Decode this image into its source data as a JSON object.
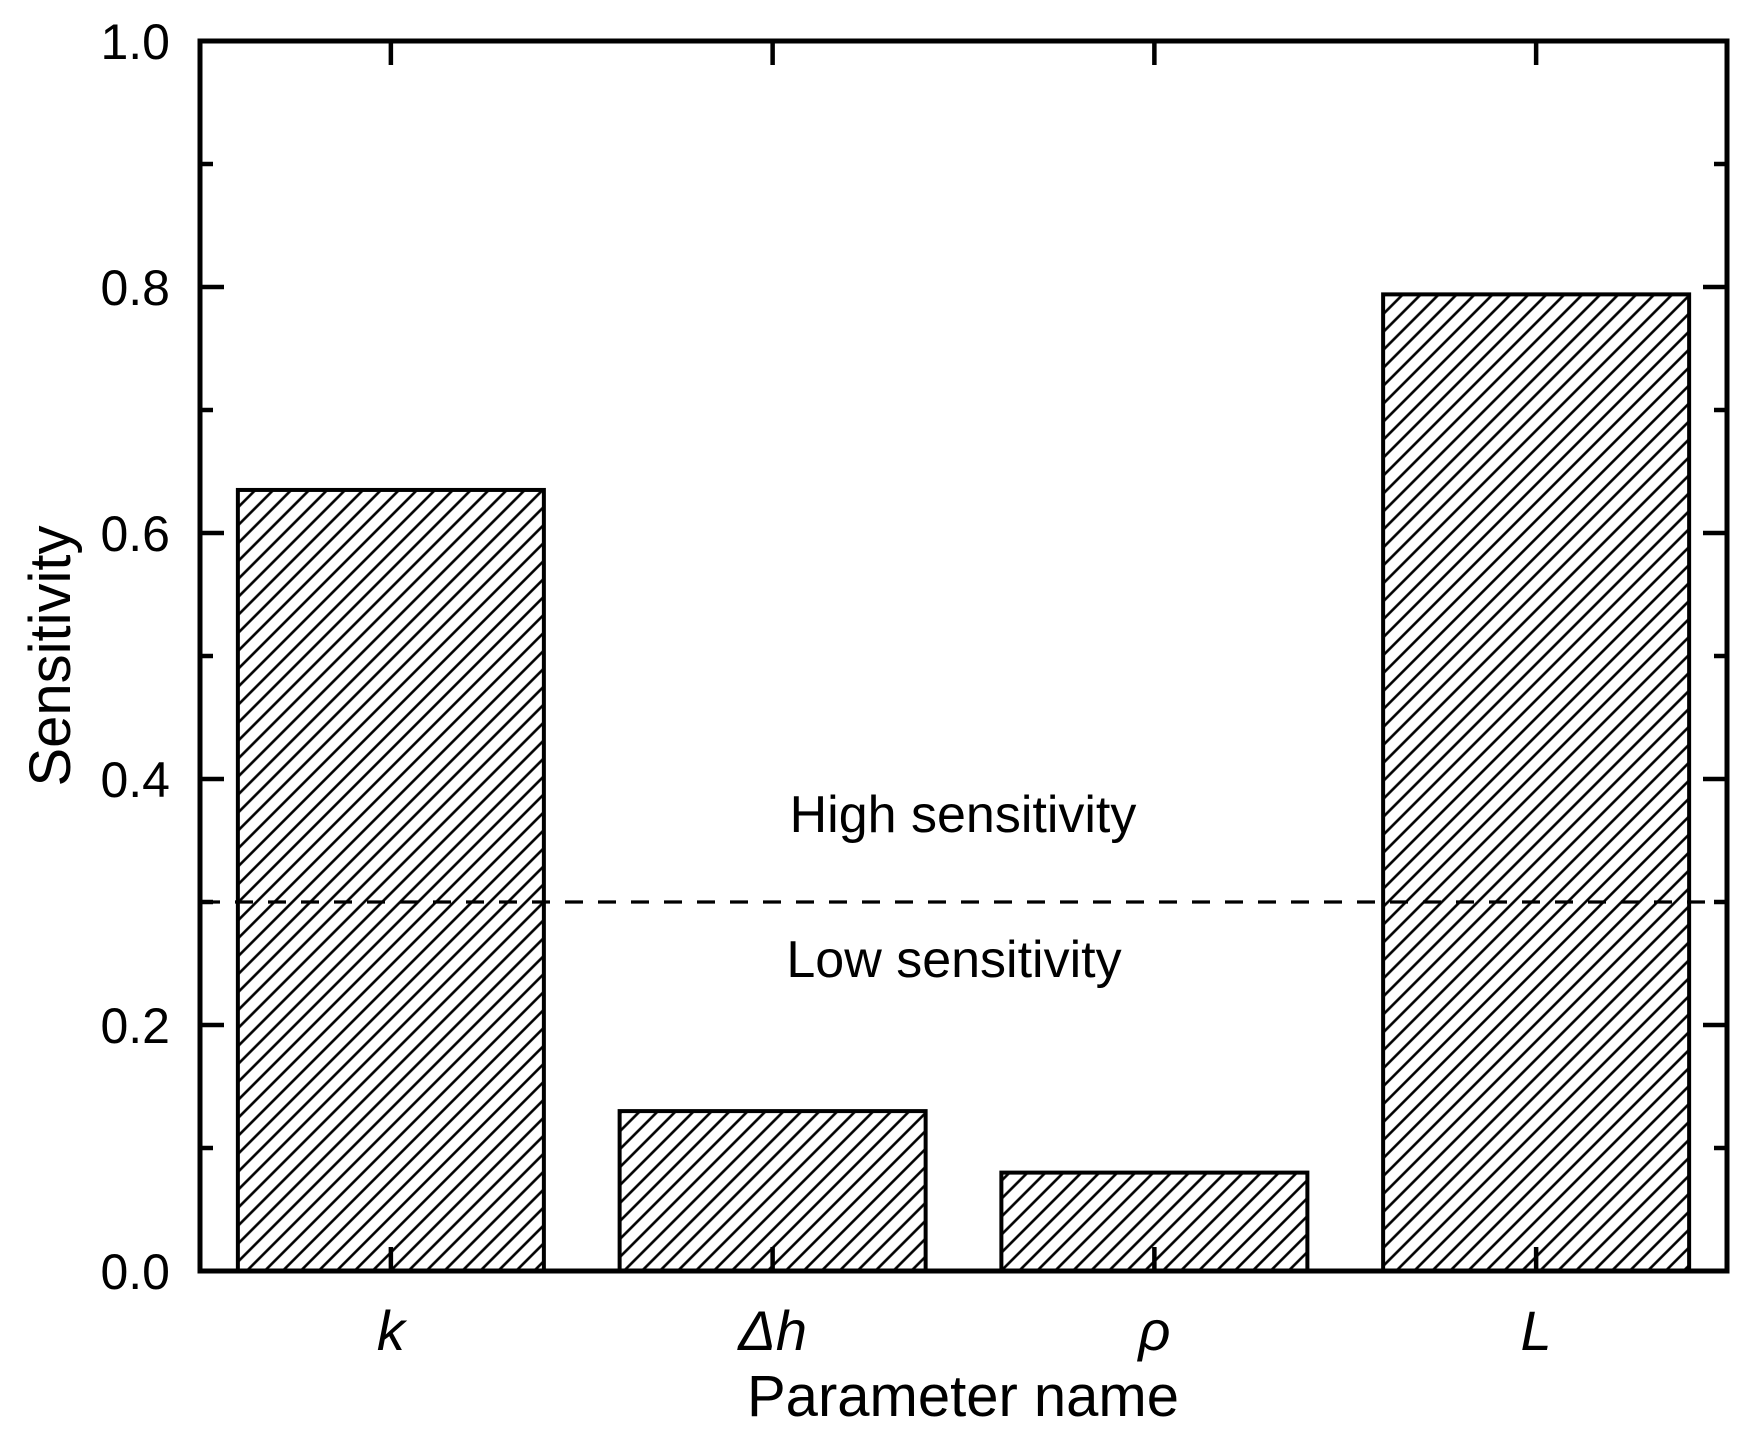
{
  "figure": {
    "background_color": "#ffffff",
    "ink_color": "#000000"
  },
  "chart_data": {
    "type": "bar",
    "title": "",
    "categories": [
      "k",
      "Δh",
      "ρ",
      "L"
    ],
    "values": [
      0.635,
      0.13,
      0.08,
      0.794
    ],
    "xlabel": "Parameter name",
    "ylabel": "Sensitivity",
    "ylim": [
      0.0,
      1.0
    ],
    "y_major_ticks": [
      0.0,
      0.2,
      0.4,
      0.6,
      0.8,
      1.0
    ],
    "y_major_tick_labels": [
      "0.0",
      "0.2",
      "0.4",
      "0.6",
      "0.8",
      "1.0"
    ],
    "y_minor_ticks": [
      0.1,
      0.3,
      0.5,
      0.7,
      0.9
    ],
    "grid": false,
    "legend": false,
    "bar_fill": "white with black diagonal hatch /",
    "bar_edge_color": "#000000",
    "category_label_style": "italic",
    "tick_direction": "in",
    "mirror_ticks": true,
    "threshold_line": {
      "value": 0.3,
      "style": "dashed",
      "color": "#000000",
      "label_above": "High sensitivity",
      "label_below": "Low sensitivity"
    }
  }
}
